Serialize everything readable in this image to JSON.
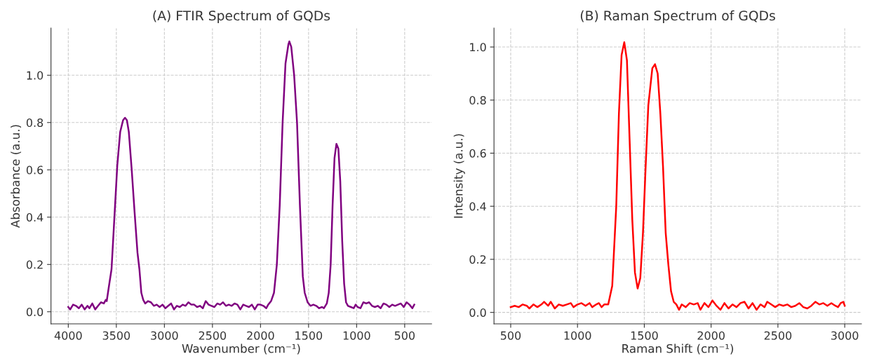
{
  "chart_data": [
    {
      "type": "line",
      "title": "(A) FTIR Spectrum of GQDs",
      "xlabel": "Wavenumber (cm⁻¹)",
      "ylabel": "Absorbance (a.u.)",
      "series": [
        {
          "color": "#800080",
          "x": [
            4000,
            3980,
            3950,
            3920,
            3890,
            3860,
            3830,
            3800,
            3780,
            3750,
            3720,
            3690,
            3660,
            3630,
            3610,
            3600,
            3580,
            3550,
            3520,
            3490,
            3460,
            3430,
            3410,
            3390,
            3370,
            3340,
            3310,
            3280,
            3260,
            3240,
            3220,
            3200,
            3170,
            3140,
            3110,
            3080,
            3050,
            3020,
            2990,
            2960,
            2930,
            2900,
            2870,
            2840,
            2810,
            2780,
            2750,
            2720,
            2690,
            2660,
            2630,
            2600,
            2570,
            2540,
            2510,
            2480,
            2450,
            2420,
            2390,
            2360,
            2330,
            2300,
            2270,
            2240,
            2210,
            2180,
            2150,
            2120,
            2090,
            2060,
            2030,
            2000,
            1970,
            1940,
            1920,
            1890,
            1860,
            1830,
            1800,
            1770,
            1740,
            1710,
            1700,
            1680,
            1650,
            1620,
            1590,
            1560,
            1540,
            1510,
            1480,
            1450,
            1420,
            1390,
            1360,
            1340,
            1310,
            1290,
            1270,
            1250,
            1230,
            1210,
            1190,
            1170,
            1150,
            1130,
            1110,
            1090,
            1060,
            1030,
            1010,
            990,
            960,
            930,
            900,
            870,
            840,
            810,
            780,
            750,
            720,
            690,
            660,
            630,
            600,
            570,
            540,
            510,
            480,
            450,
            420,
            400
          ],
          "values": [
            0.02,
            0.01,
            0.03,
            0.025,
            0.015,
            0.03,
            0.01,
            0.025,
            0.015,
            0.035,
            0.01,
            0.025,
            0.04,
            0.035,
            0.05,
            0.045,
            0.1,
            0.18,
            0.4,
            0.62,
            0.76,
            0.81,
            0.82,
            0.81,
            0.76,
            0.6,
            0.42,
            0.25,
            0.18,
            0.08,
            0.05,
            0.035,
            0.045,
            0.04,
            0.025,
            0.03,
            0.02,
            0.03,
            0.015,
            0.025,
            0.035,
            0.01,
            0.025,
            0.02,
            0.03,
            0.025,
            0.04,
            0.03,
            0.03,
            0.02,
            0.025,
            0.015,
            0.045,
            0.03,
            0.025,
            0.02,
            0.035,
            0.03,
            0.04,
            0.025,
            0.03,
            0.025,
            0.035,
            0.03,
            0.01,
            0.03,
            0.025,
            0.02,
            0.03,
            0.01,
            0.03,
            0.03,
            0.025,
            0.015,
            0.03,
            0.045,
            0.08,
            0.2,
            0.45,
            0.8,
            1.05,
            1.13,
            1.143,
            1.12,
            1.0,
            0.8,
            0.45,
            0.15,
            0.08,
            0.04,
            0.025,
            0.03,
            0.025,
            0.015,
            0.02,
            0.015,
            0.035,
            0.08,
            0.2,
            0.45,
            0.65,
            0.71,
            0.69,
            0.55,
            0.3,
            0.12,
            0.04,
            0.025,
            0.02,
            0.015,
            0.03,
            0.02,
            0.015,
            0.04,
            0.035,
            0.04,
            0.025,
            0.02,
            0.025,
            0.015,
            0.035,
            0.03,
            0.02,
            0.03,
            0.025,
            0.03,
            0.035,
            0.02,
            0.04,
            0.03,
            0.015,
            0.03
          ]
        }
      ],
      "xlim": [
        4180,
        220
      ],
      "xticks": [
        4000,
        3500,
        3000,
        2500,
        2000,
        1500,
        1000,
        500
      ],
      "ylim": [
        -0.051,
        1.199
      ],
      "yticks": [
        {
          "value": 0,
          "label": "0.0"
        },
        {
          "value": 0.2,
          "label": "0.2"
        },
        {
          "value": 0.4,
          "label": "0.4"
        },
        {
          "value": 0.6,
          "label": "0.6"
        },
        {
          "value": 0.8,
          "label": "0.8"
        },
        {
          "value": 1.0,
          "label": "1.0"
        }
      ],
      "grid": true
    },
    {
      "type": "line",
      "title": "(B) Raman Spectrum of GQDs",
      "xlabel": "Raman Shift (cm⁻¹)",
      "ylabel": "Intensity (a.u.)",
      "series": [
        {
          "color": "#ff0000",
          "x": [
            500,
            530,
            560,
            590,
            620,
            640,
            670,
            700,
            730,
            750,
            780,
            800,
            830,
            860,
            890,
            920,
            950,
            970,
            1000,
            1030,
            1060,
            1090,
            1110,
            1140,
            1160,
            1180,
            1200,
            1230,
            1260,
            1290,
            1310,
            1330,
            1350,
            1370,
            1390,
            1410,
            1430,
            1450,
            1470,
            1490,
            1510,
            1530,
            1560,
            1580,
            1600,
            1620,
            1640,
            1660,
            1680,
            1700,
            1720,
            1740,
            1760,
            1780,
            1810,
            1840,
            1870,
            1900,
            1920,
            1950,
            1980,
            2010,
            2040,
            2070,
            2100,
            2130,
            2160,
            2190,
            2220,
            2250,
            2280,
            2310,
            2340,
            2370,
            2400,
            2420,
            2450,
            2480,
            2510,
            2540,
            2570,
            2600,
            2630,
            2660,
            2690,
            2720,
            2750,
            2780,
            2810,
            2840,
            2870,
            2900,
            2930,
            2950,
            2970,
            2990,
            3000
          ],
          "values": [
            0.02,
            0.025,
            0.02,
            0.03,
            0.025,
            0.015,
            0.03,
            0.02,
            0.03,
            0.04,
            0.025,
            0.04,
            0.015,
            0.03,
            0.025,
            0.03,
            0.035,
            0.02,
            0.03,
            0.035,
            0.025,
            0.035,
            0.02,
            0.03,
            0.035,
            0.02,
            0.03,
            0.03,
            0.1,
            0.4,
            0.75,
            0.97,
            1.018,
            0.95,
            0.65,
            0.35,
            0.15,
            0.09,
            0.13,
            0.3,
            0.55,
            0.78,
            0.92,
            0.935,
            0.9,
            0.75,
            0.55,
            0.3,
            0.18,
            0.08,
            0.04,
            0.03,
            0.01,
            0.03,
            0.02,
            0.035,
            0.03,
            0.035,
            0.01,
            0.035,
            0.02,
            0.045,
            0.025,
            0.01,
            0.035,
            0.015,
            0.03,
            0.02,
            0.035,
            0.04,
            0.015,
            0.035,
            0.01,
            0.03,
            0.02,
            0.04,
            0.03,
            0.02,
            0.03,
            0.025,
            0.03,
            0.02,
            0.025,
            0.035,
            0.02,
            0.015,
            0.025,
            0.04,
            0.03,
            0.035,
            0.025,
            0.035,
            0.025,
            0.02,
            0.035,
            0.04,
            0.025
          ]
        }
      ],
      "xlim": [
        375,
        3125
      ],
      "xticks": [
        500,
        1000,
        1500,
        2000,
        2500,
        3000
      ],
      "ylim": [
        -0.043,
        1.071
      ],
      "yticks": [
        {
          "value": 0,
          "label": "0.0"
        },
        {
          "value": 0.2,
          "label": "0.2"
        },
        {
          "value": 0.4,
          "label": "0.4"
        },
        {
          "value": 0.6,
          "label": "0.6"
        },
        {
          "value": 0.8,
          "label": "0.8"
        },
        {
          "value": 1.0,
          "label": "1.0"
        }
      ],
      "grid": true
    }
  ]
}
